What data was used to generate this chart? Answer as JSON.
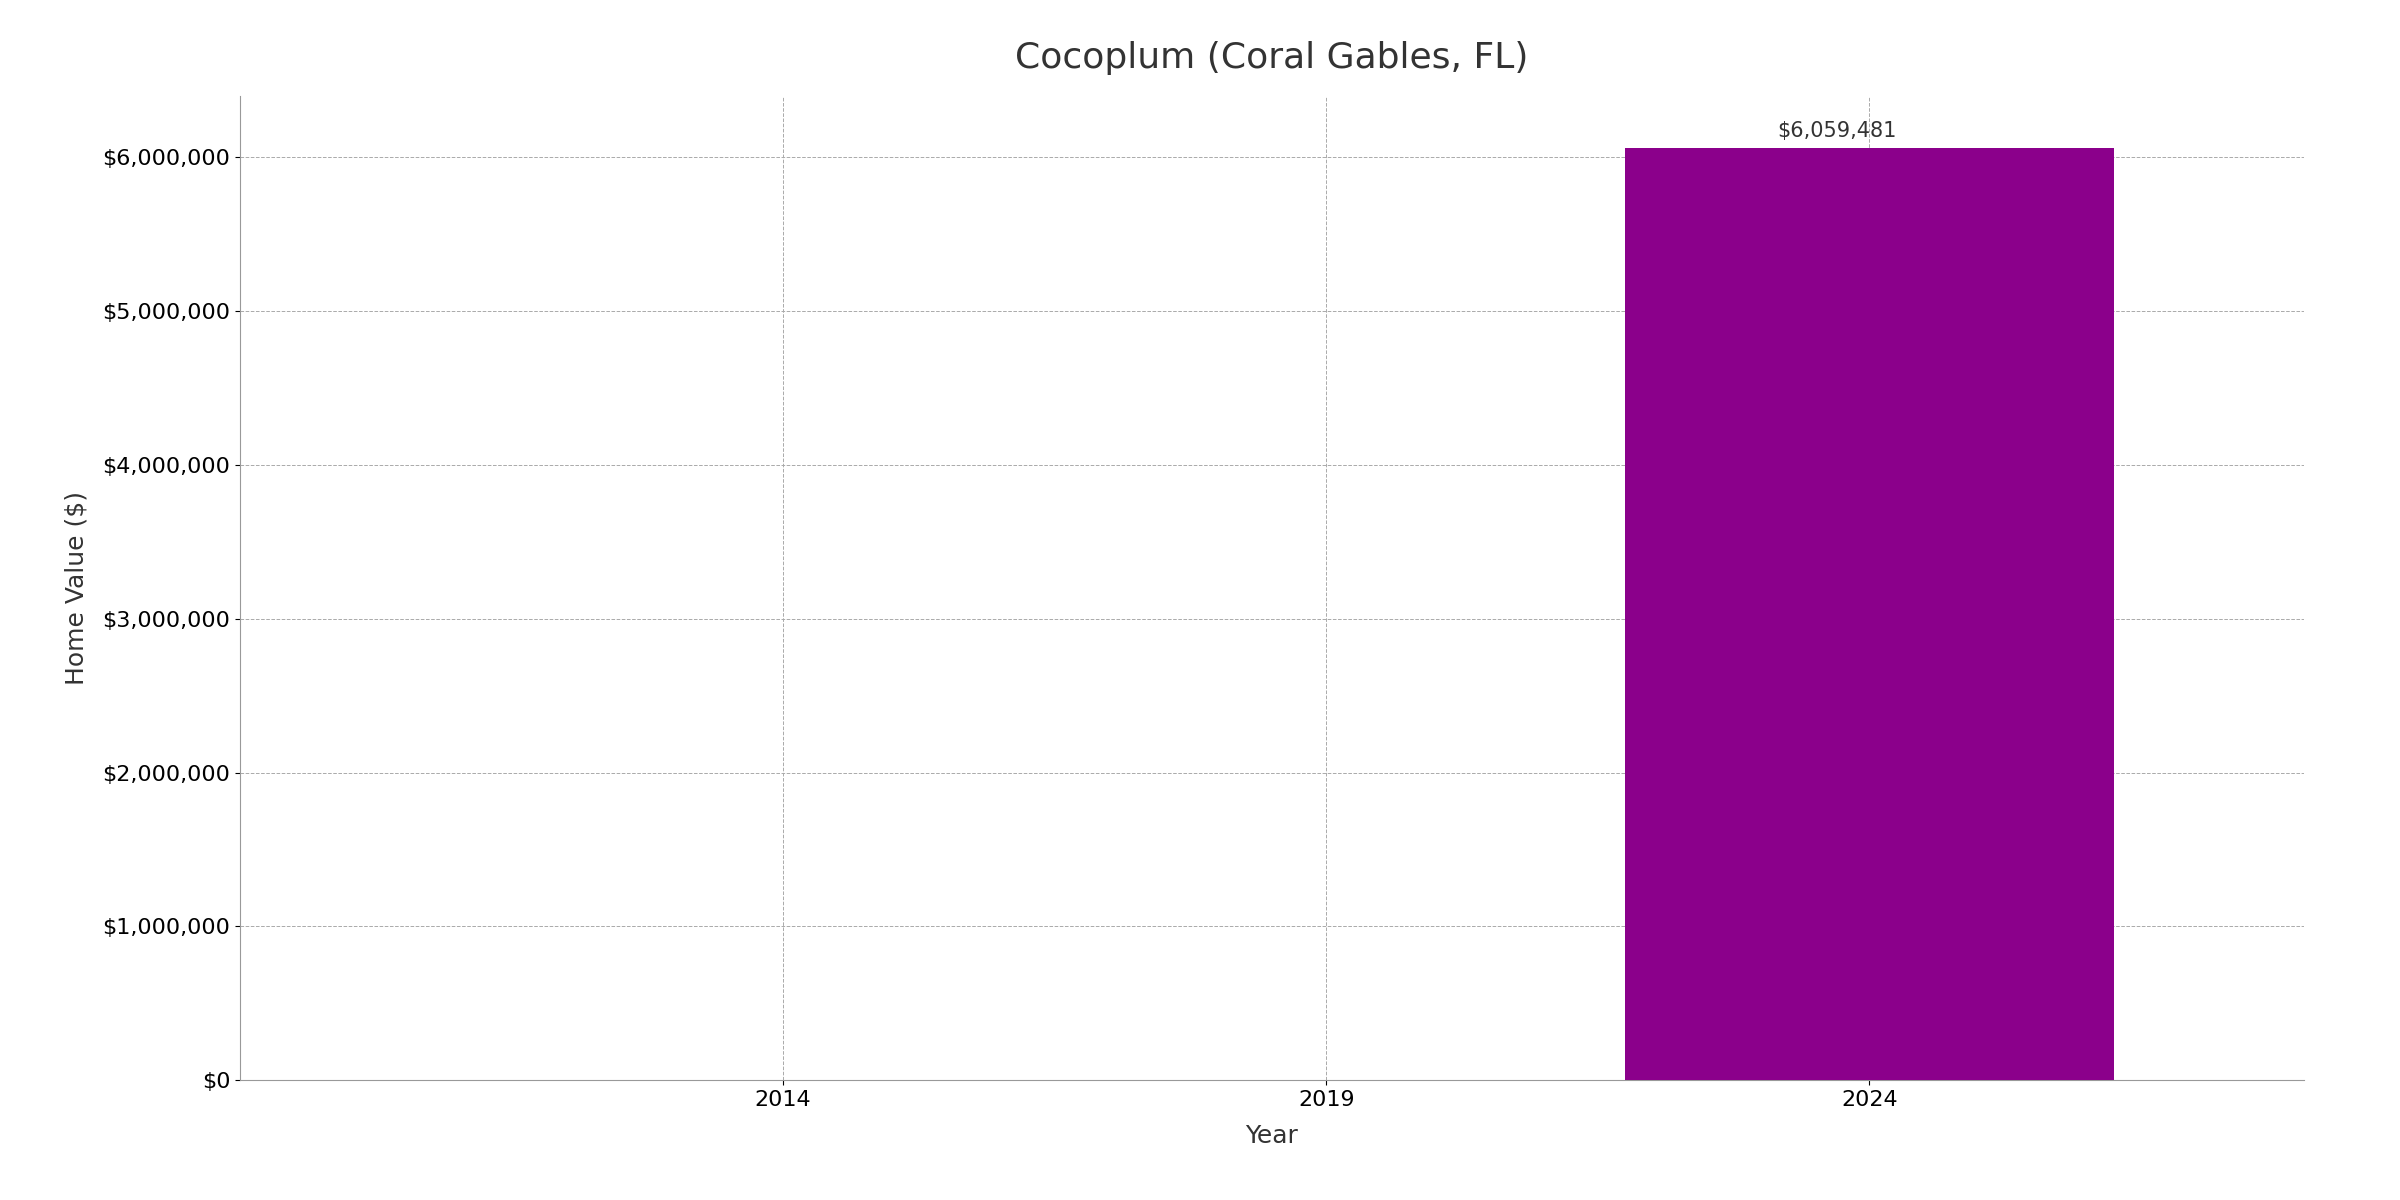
{
  "title": "Cocoplum (Coral Gables, FL)",
  "xlabel": "Year",
  "ylabel": "Home Value ($)",
  "bar_year": 2024,
  "bar_value": 6059481,
  "bar_color": "#8B008B",
  "bar_width": 4.5,
  "bar_label": "$6,059,481",
  "xticks": [
    2014,
    2019,
    2024
  ],
  "xlim": [
    2009,
    2028
  ],
  "ylim": [
    0,
    6400000
  ],
  "yticks": [
    0,
    1000000,
    2000000,
    3000000,
    4000000,
    5000000,
    6000000
  ],
  "ytick_labels": [
    "$0",
    "$1,000,000",
    "$2,000,000",
    "$3,000,000",
    "$4,000,000",
    "$5,000,000",
    "$6,000,000"
  ],
  "grid_color": "#aaaaaa",
  "background_color": "#ffffff",
  "title_fontsize": 26,
  "label_fontsize": 18,
  "tick_fontsize": 16,
  "annotation_fontsize": 15
}
